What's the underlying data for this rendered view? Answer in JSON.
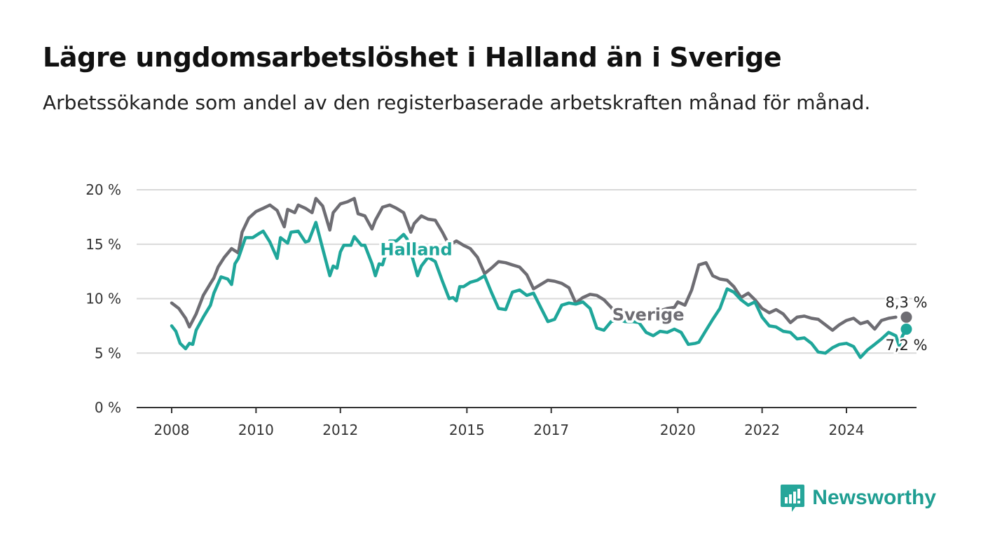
{
  "header": {
    "title": "Lägre ungdomsarbetslöshet i Halland än i Sverige",
    "subtitle": "Arbetssökande som andel av den registerbaserade arbetskraften månad för månad."
  },
  "logo": {
    "text": "Newsworthy",
    "icon": "bar-chart-speech-bubble-icon",
    "color": "#26a69a"
  },
  "chart_data": {
    "type": "line",
    "xlim": [
      2008,
      2025.5
    ],
    "ylim": [
      0,
      20
    ],
    "grid": true,
    "y_ticks": [
      {
        "value": 0,
        "label": "0 %"
      },
      {
        "value": 5,
        "label": "5 %"
      },
      {
        "value": 10,
        "label": "10 %"
      },
      {
        "value": 15,
        "label": "15 %"
      },
      {
        "value": 20,
        "label": "20 %"
      }
    ],
    "x_ticks": [
      {
        "value": 2008,
        "label": "2008"
      },
      {
        "value": 2010,
        "label": "2010"
      },
      {
        "value": 2012,
        "label": "2012"
      },
      {
        "value": 2015,
        "label": "2015"
      },
      {
        "value": 2017,
        "label": "2017"
      },
      {
        "value": 2020,
        "label": "2020"
      },
      {
        "value": 2022,
        "label": "2022"
      },
      {
        "value": 2024,
        "label": "2024"
      }
    ],
    "series": [
      {
        "name": "Sverige",
        "color": "#6e6d73",
        "end_label": "8,3 %",
        "points": [
          [
            2008.0,
            9.6
          ],
          [
            2008.17,
            9.1
          ],
          [
            2008.33,
            8.2
          ],
          [
            2008.42,
            7.4
          ],
          [
            2008.5,
            8.0
          ],
          [
            2008.58,
            8.6
          ],
          [
            2008.75,
            10.3
          ],
          [
            2008.92,
            11.4
          ],
          [
            2009.0,
            11.9
          ],
          [
            2009.1,
            12.9
          ],
          [
            2009.25,
            13.8
          ],
          [
            2009.42,
            14.6
          ],
          [
            2009.58,
            14.2
          ],
          [
            2009.67,
            16.1
          ],
          [
            2009.83,
            17.4
          ],
          [
            2010.0,
            18.0
          ],
          [
            2010.17,
            18.3
          ],
          [
            2010.33,
            18.6
          ],
          [
            2010.5,
            18.1
          ],
          [
            2010.67,
            16.6
          ],
          [
            2010.75,
            18.2
          ],
          [
            2010.92,
            17.9
          ],
          [
            2011.0,
            18.6
          ],
          [
            2011.17,
            18.3
          ],
          [
            2011.33,
            17.9
          ],
          [
            2011.42,
            19.2
          ],
          [
            2011.58,
            18.5
          ],
          [
            2011.75,
            16.3
          ],
          [
            2011.83,
            17.9
          ],
          [
            2012.0,
            18.7
          ],
          [
            2012.17,
            18.9
          ],
          [
            2012.33,
            19.2
          ],
          [
            2012.42,
            17.8
          ],
          [
            2012.58,
            17.6
          ],
          [
            2012.75,
            16.4
          ],
          [
            2012.83,
            17.2
          ],
          [
            2013.0,
            18.4
          ],
          [
            2013.17,
            18.6
          ],
          [
            2013.33,
            18.3
          ],
          [
            2013.5,
            17.9
          ],
          [
            2013.67,
            16.1
          ],
          [
            2013.75,
            16.9
          ],
          [
            2013.92,
            17.6
          ],
          [
            2014.08,
            17.3
          ],
          [
            2014.25,
            17.2
          ],
          [
            2014.42,
            16.1
          ],
          [
            2014.58,
            14.9
          ],
          [
            2014.75,
            15.3
          ],
          [
            2014.92,
            14.9
          ],
          [
            2015.08,
            14.6
          ],
          [
            2015.25,
            13.8
          ],
          [
            2015.42,
            12.3
          ],
          [
            2015.58,
            12.8
          ],
          [
            2015.75,
            13.4
          ],
          [
            2015.92,
            13.3
          ],
          [
            2016.08,
            13.1
          ],
          [
            2016.25,
            12.9
          ],
          [
            2016.42,
            12.2
          ],
          [
            2016.58,
            10.9
          ],
          [
            2016.75,
            11.3
          ],
          [
            2016.92,
            11.7
          ],
          [
            2017.08,
            11.6
          ],
          [
            2017.25,
            11.4
          ],
          [
            2017.42,
            11.0
          ],
          [
            2017.58,
            9.6
          ],
          [
            2017.75,
            10.1
          ],
          [
            2017.92,
            10.4
          ],
          [
            2018.08,
            10.3
          ],
          [
            2018.25,
            9.9
          ],
          [
            2018.42,
            9.2
          ],
          [
            2018.58,
            8.3
          ],
          [
            2018.75,
            8.1
          ],
          [
            2018.92,
            8.6
          ],
          [
            2019.08,
            8.9
          ],
          [
            2019.25,
            8.4
          ],
          [
            2019.42,
            8.7
          ],
          [
            2019.58,
            8.9
          ],
          [
            2019.75,
            9.1
          ],
          [
            2019.92,
            9.2
          ],
          [
            2020.0,
            9.7
          ],
          [
            2020.17,
            9.4
          ],
          [
            2020.33,
            10.8
          ],
          [
            2020.5,
            13.1
          ],
          [
            2020.67,
            13.3
          ],
          [
            2020.83,
            12.1
          ],
          [
            2021.0,
            11.8
          ],
          [
            2021.17,
            11.7
          ],
          [
            2021.33,
            11.1
          ],
          [
            2021.5,
            10.1
          ],
          [
            2021.67,
            10.5
          ],
          [
            2021.83,
            9.9
          ],
          [
            2022.0,
            9.1
          ],
          [
            2022.17,
            8.7
          ],
          [
            2022.33,
            9.0
          ],
          [
            2022.5,
            8.6
          ],
          [
            2022.67,
            7.8
          ],
          [
            2022.83,
            8.3
          ],
          [
            2023.0,
            8.4
          ],
          [
            2023.17,
            8.2
          ],
          [
            2023.33,
            8.1
          ],
          [
            2023.5,
            7.6
          ],
          [
            2023.67,
            7.1
          ],
          [
            2023.83,
            7.6
          ],
          [
            2024.0,
            8.0
          ],
          [
            2024.17,
            8.2
          ],
          [
            2024.33,
            7.7
          ],
          [
            2024.5,
            7.9
          ],
          [
            2024.67,
            7.2
          ],
          [
            2024.83,
            8.0
          ],
          [
            2025.0,
            8.2
          ],
          [
            2025.17,
            8.3
          ]
        ]
      },
      {
        "name": "Halland",
        "color": "#1fa69a",
        "end_label": "7,2 %",
        "points": [
          [
            2008.0,
            7.5
          ],
          [
            2008.1,
            7.0
          ],
          [
            2008.2,
            5.9
          ],
          [
            2008.33,
            5.4
          ],
          [
            2008.42,
            5.9
          ],
          [
            2008.5,
            5.8
          ],
          [
            2008.58,
            7.1
          ],
          [
            2008.75,
            8.3
          ],
          [
            2008.92,
            9.4
          ],
          [
            2009.0,
            10.5
          ],
          [
            2009.17,
            12.0
          ],
          [
            2009.33,
            11.8
          ],
          [
            2009.42,
            11.3
          ],
          [
            2009.5,
            13.2
          ],
          [
            2009.58,
            13.7
          ],
          [
            2009.75,
            15.6
          ],
          [
            2009.92,
            15.6
          ],
          [
            2010.08,
            16.0
          ],
          [
            2010.17,
            16.2
          ],
          [
            2010.33,
            15.2
          ],
          [
            2010.5,
            13.7
          ],
          [
            2010.58,
            15.6
          ],
          [
            2010.75,
            15.1
          ],
          [
            2010.83,
            16.1
          ],
          [
            2011.0,
            16.2
          ],
          [
            2011.17,
            15.2
          ],
          [
            2011.25,
            15.3
          ],
          [
            2011.42,
            17.0
          ],
          [
            2011.58,
            14.6
          ],
          [
            2011.75,
            12.1
          ],
          [
            2011.83,
            13.0
          ],
          [
            2011.92,
            12.8
          ],
          [
            2012.0,
            14.3
          ],
          [
            2012.08,
            14.9
          ],
          [
            2012.25,
            14.9
          ],
          [
            2012.33,
            15.7
          ],
          [
            2012.5,
            14.9
          ],
          [
            2012.58,
            14.9
          ],
          [
            2012.75,
            13.2
          ],
          [
            2012.83,
            12.1
          ],
          [
            2012.92,
            13.2
          ],
          [
            2013.0,
            13.1
          ],
          [
            2013.17,
            15.3
          ],
          [
            2013.33,
            15.3
          ],
          [
            2013.5,
            15.9
          ],
          [
            2013.58,
            15.5
          ],
          [
            2013.75,
            13.2
          ],
          [
            2013.83,
            12.1
          ],
          [
            2013.92,
            13.0
          ],
          [
            2014.08,
            13.8
          ],
          [
            2014.25,
            13.4
          ],
          [
            2014.42,
            11.6
          ],
          [
            2014.58,
            10.0
          ],
          [
            2014.67,
            10.1
          ],
          [
            2014.75,
            9.8
          ],
          [
            2014.83,
            11.1
          ],
          [
            2014.92,
            11.1
          ],
          [
            2015.08,
            11.5
          ],
          [
            2015.25,
            11.7
          ],
          [
            2015.42,
            12.1
          ],
          [
            2015.58,
            10.6
          ],
          [
            2015.75,
            9.1
          ],
          [
            2015.92,
            9.0
          ],
          [
            2016.08,
            10.6
          ],
          [
            2016.25,
            10.8
          ],
          [
            2016.42,
            10.3
          ],
          [
            2016.58,
            10.5
          ],
          [
            2016.75,
            9.2
          ],
          [
            2016.92,
            7.9
          ],
          [
            2017.08,
            8.1
          ],
          [
            2017.25,
            9.4
          ],
          [
            2017.42,
            9.6
          ],
          [
            2017.58,
            9.5
          ],
          [
            2017.75,
            9.7
          ],
          [
            2017.92,
            9.1
          ],
          [
            2018.08,
            7.3
          ],
          [
            2018.25,
            7.1
          ],
          [
            2018.42,
            7.9
          ],
          [
            2018.58,
            8.1
          ],
          [
            2018.75,
            7.9
          ],
          [
            2018.92,
            7.9
          ],
          [
            2019.08,
            7.8
          ],
          [
            2019.25,
            6.9
          ],
          [
            2019.42,
            6.6
          ],
          [
            2019.58,
            7.0
          ],
          [
            2019.75,
            6.9
          ],
          [
            2019.92,
            7.2
          ],
          [
            2020.08,
            6.9
          ],
          [
            2020.25,
            5.8
          ],
          [
            2020.42,
            5.9
          ],
          [
            2020.5,
            6.0
          ],
          [
            2020.67,
            7.1
          ],
          [
            2020.83,
            8.1
          ],
          [
            2021.0,
            9.1
          ],
          [
            2021.17,
            10.9
          ],
          [
            2021.33,
            10.6
          ],
          [
            2021.5,
            9.9
          ],
          [
            2021.67,
            9.4
          ],
          [
            2021.83,
            9.7
          ],
          [
            2022.0,
            8.3
          ],
          [
            2022.17,
            7.5
          ],
          [
            2022.33,
            7.4
          ],
          [
            2022.5,
            7.0
          ],
          [
            2022.67,
            6.9
          ],
          [
            2022.83,
            6.3
          ],
          [
            2023.0,
            6.4
          ],
          [
            2023.17,
            5.9
          ],
          [
            2023.33,
            5.1
          ],
          [
            2023.5,
            5.0
          ],
          [
            2023.67,
            5.5
          ],
          [
            2023.83,
            5.8
          ],
          [
            2024.0,
            5.9
          ],
          [
            2024.17,
            5.6
          ],
          [
            2024.33,
            4.6
          ],
          [
            2024.5,
            5.3
          ],
          [
            2024.67,
            5.8
          ],
          [
            2024.83,
            6.3
          ],
          [
            2025.0,
            6.9
          ],
          [
            2025.17,
            6.6
          ],
          [
            2025.25,
            5.7
          ],
          [
            2025.33,
            6.6
          ],
          [
            2025.42,
            7.2
          ]
        ]
      }
    ]
  }
}
